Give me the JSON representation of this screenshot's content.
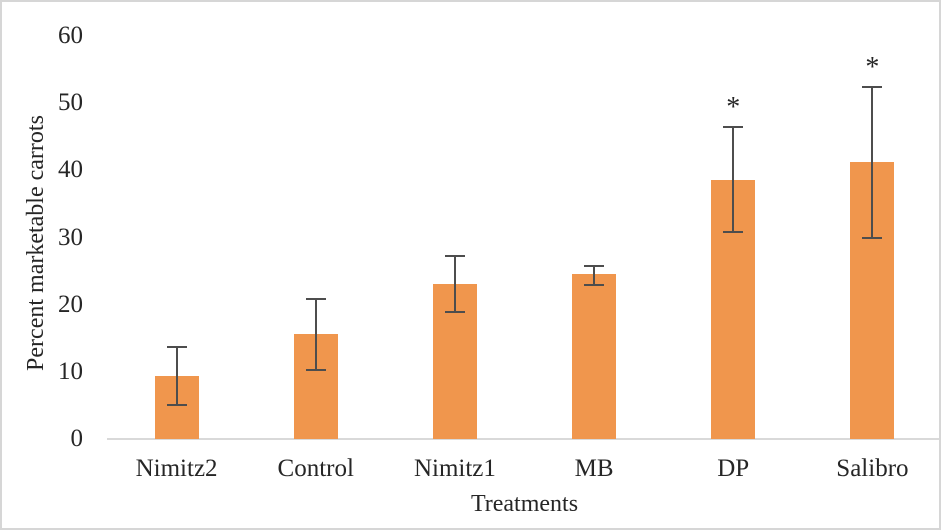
{
  "chart_data": {
    "type": "bar",
    "title": "",
    "xlabel": "Treatments",
    "ylabel": "Percent marketable carrots",
    "categories": [
      "Nimitz2",
      "Control",
      "Nimitz1",
      "MB",
      "DP",
      "Salibro"
    ],
    "values": [
      9.4,
      15.6,
      23.1,
      24.5,
      38.5,
      41.2
    ],
    "error_low": [
      5.0,
      10.3,
      18.9,
      23.0,
      30.8,
      30.0
    ],
    "error_high": [
      13.7,
      20.8,
      27.3,
      25.8,
      46.4,
      52.4
    ],
    "significance": [
      "",
      "",
      "",
      "",
      "*",
      "*"
    ],
    "yticks": [
      0,
      10,
      20,
      30,
      40,
      50,
      60
    ],
    "ylim": [
      0,
      60
    ],
    "grid": false,
    "legend_position": "none",
    "colors": {
      "bar": "#F0964D",
      "error_bar": "#4D4D4D",
      "axis_line": "#D9D9D9",
      "text": "#262626",
      "frame_border": "#D6D6D6",
      "background": "#FFFFFF"
    }
  }
}
